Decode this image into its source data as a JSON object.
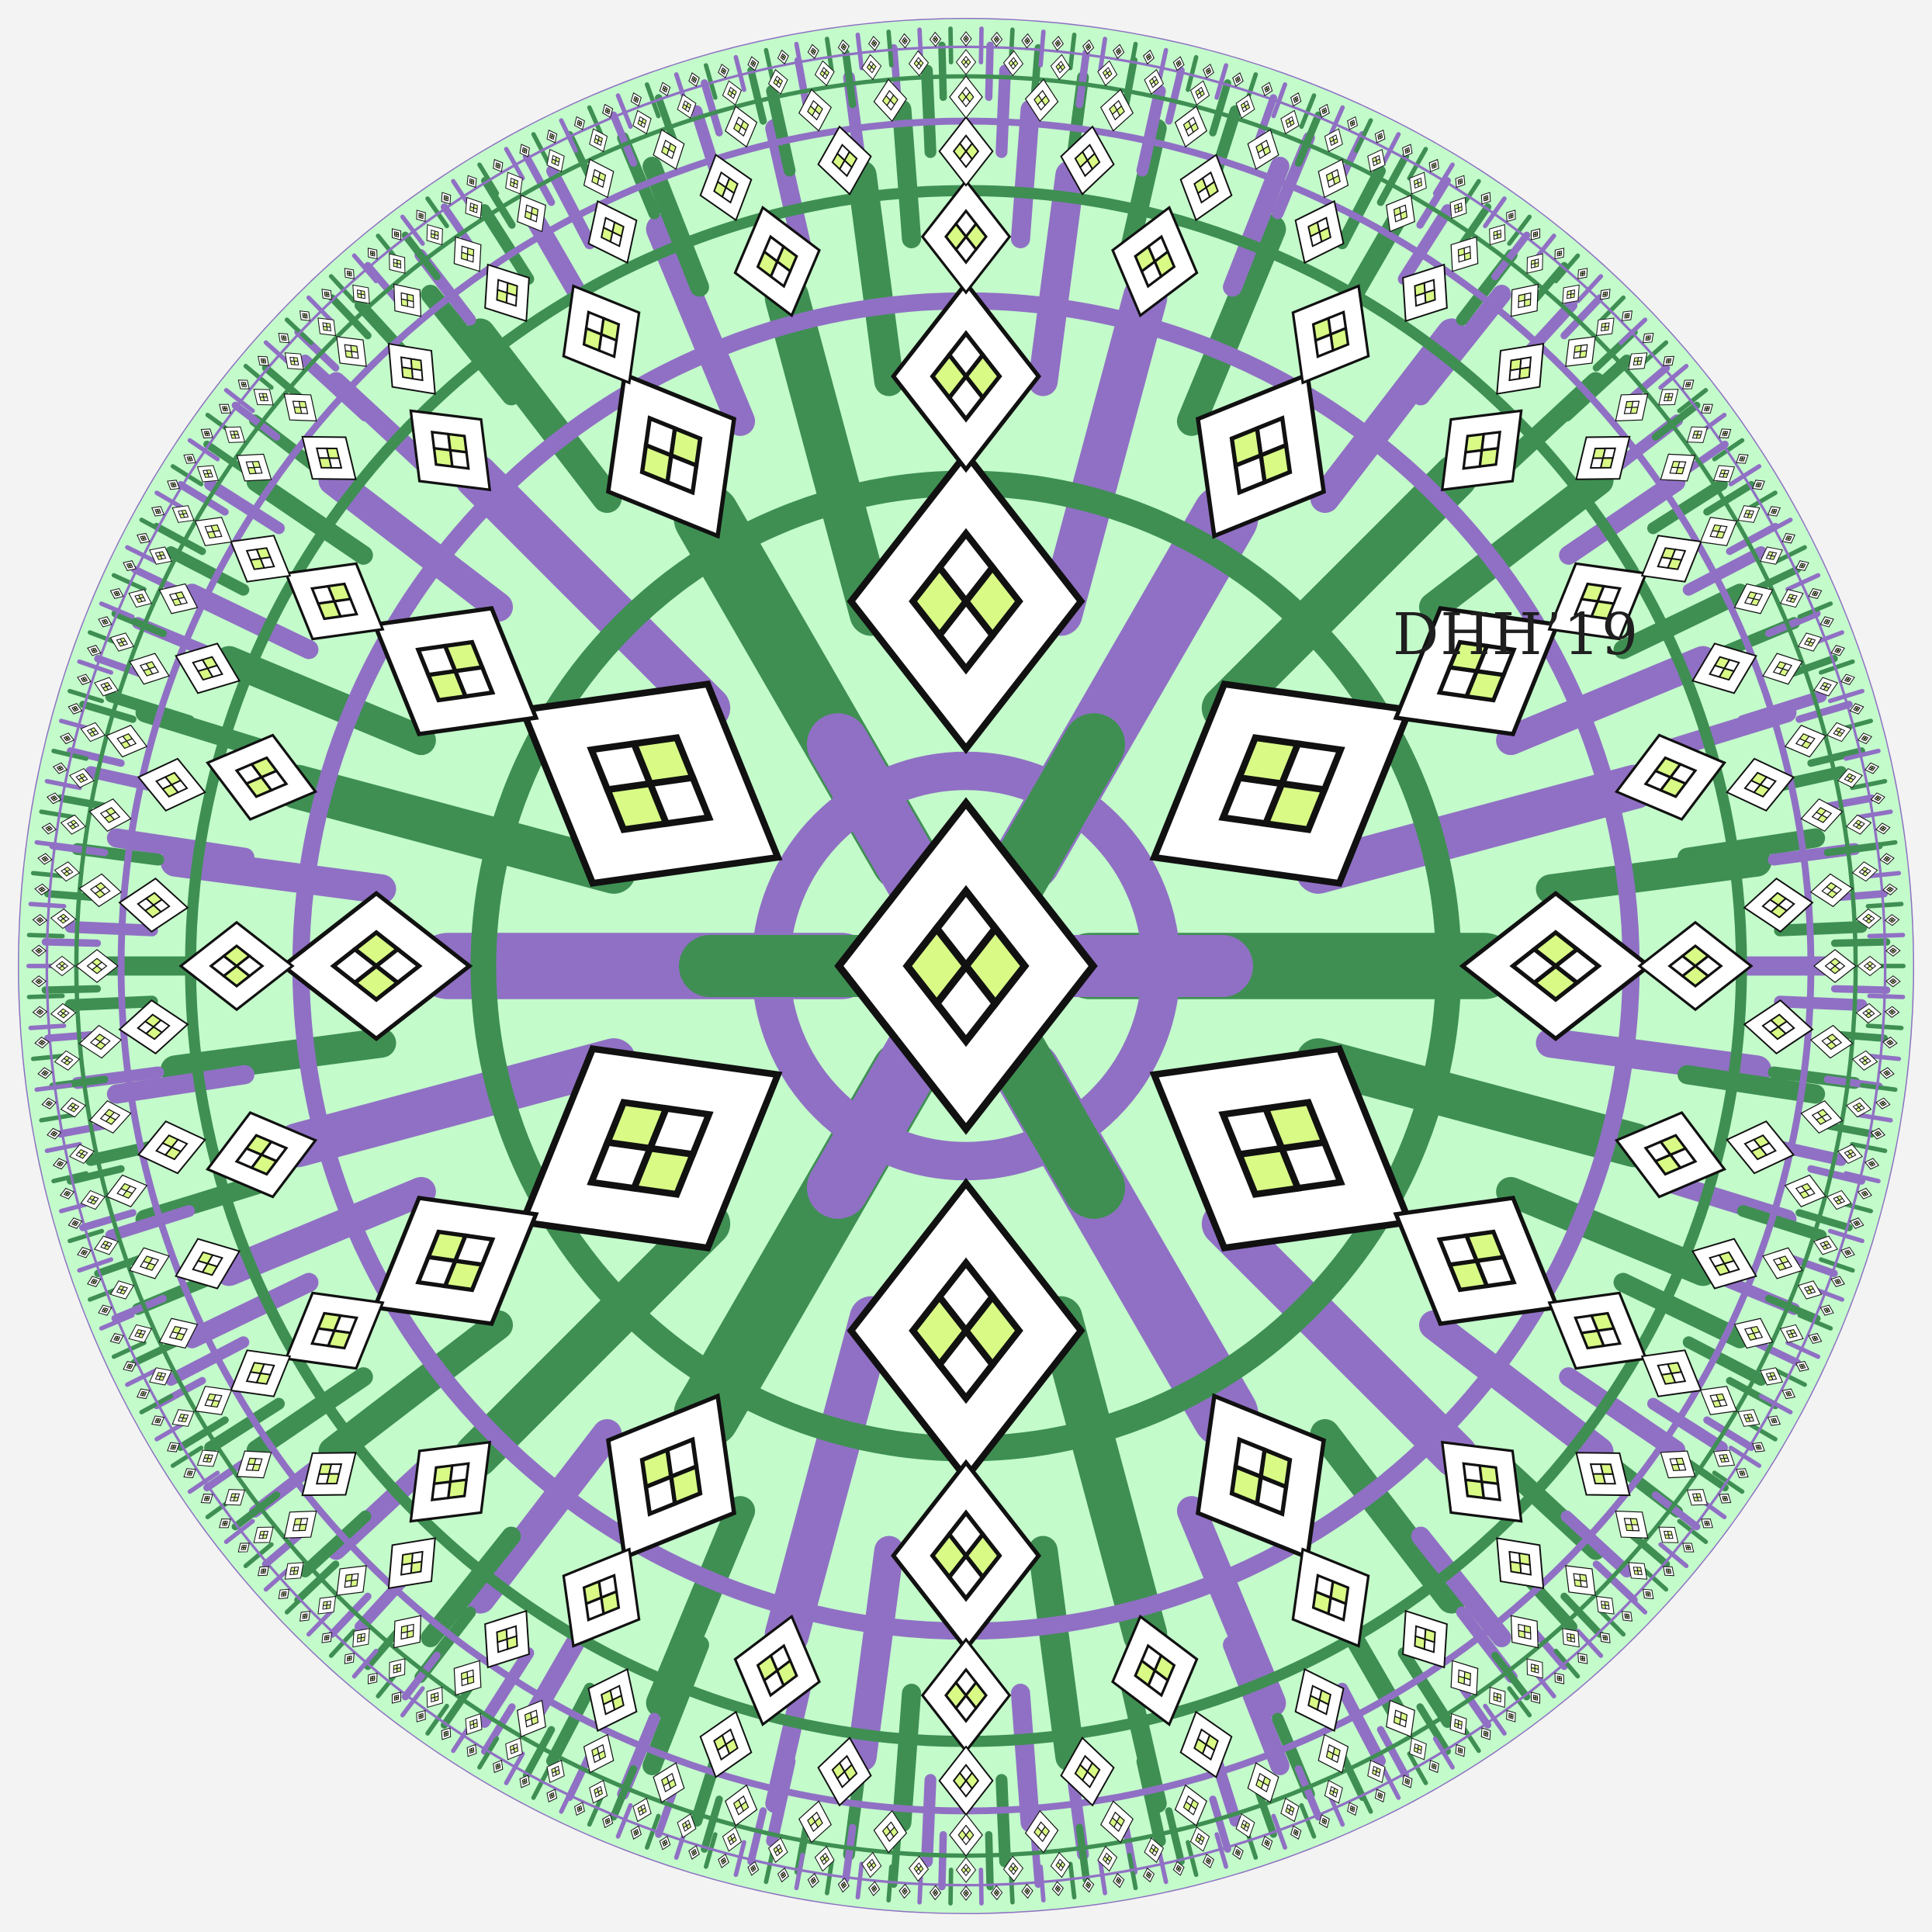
{
  "artwork": {
    "signature": "DHH’19",
    "tiling_symmetry": 6,
    "colors": {
      "background": "#f3f3f3",
      "purple": "#9070c4",
      "dark_green": "#3f8f53",
      "mint": "#c3fbcb",
      "white": "#ffffff",
      "lime": "#d9fb86",
      "outline": "#111111"
    }
  }
}
